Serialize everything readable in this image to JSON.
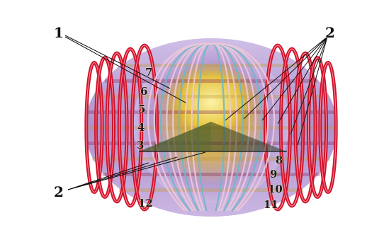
{
  "callouts": {
    "label_1": "1",
    "label_2_top": "2",
    "label_2_bottom": "2"
  },
  "ring_numbers": [
    "7",
    "6",
    "5",
    "4",
    "3",
    "8",
    "9",
    "10",
    "11",
    "12"
  ],
  "colors": {
    "outer_ring": "#d0142c",
    "inner_ring": "#f0c8d8",
    "body_tint": "#b9a7d6",
    "core_glow": "#e8d23a",
    "leader_line": "#111111"
  }
}
